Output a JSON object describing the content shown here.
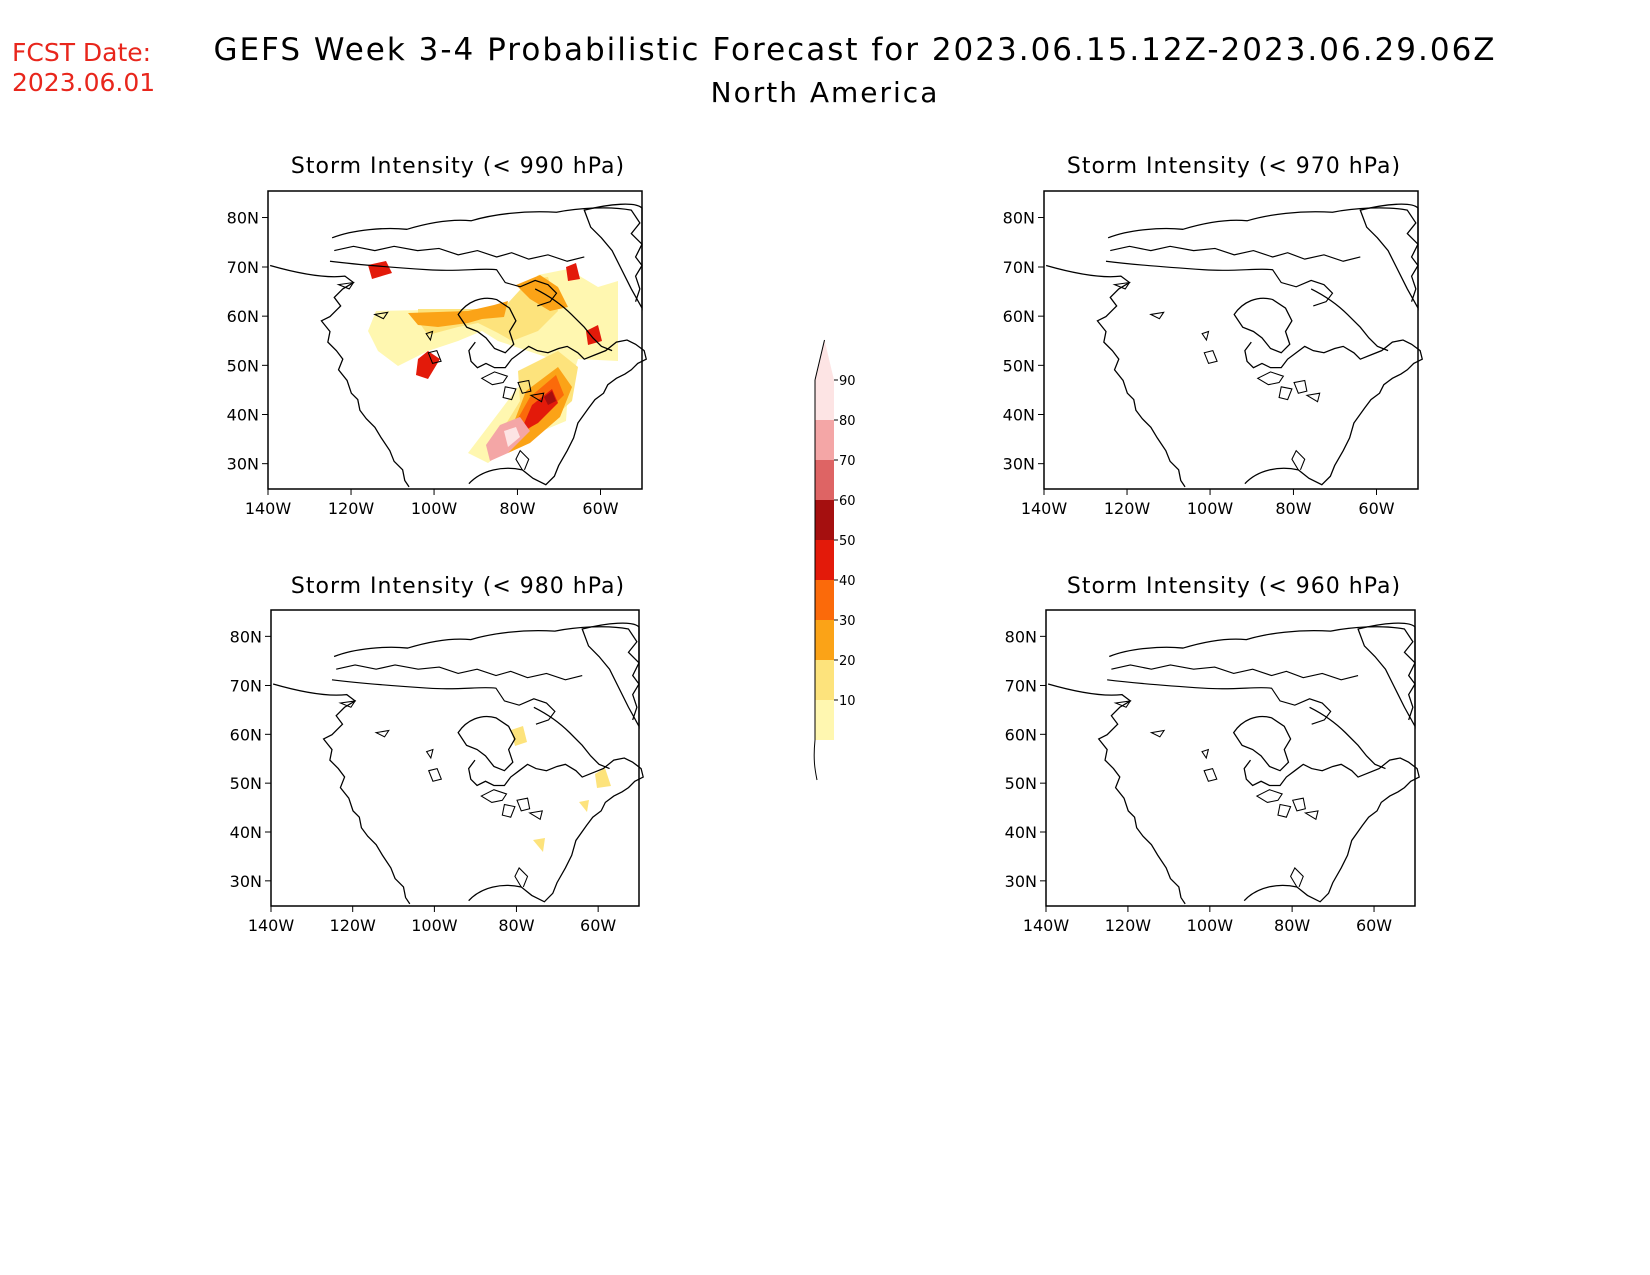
{
  "header": {
    "fcst_label": "FCST Date:",
    "fcst_date": "2023.06.01",
    "title": "GEFS Week 3-4 Probabilistic Forecast for 2023.06.15.12Z-2023.06.29.06Z",
    "subtitle": "North America"
  },
  "panels": [
    {
      "title": "Storm Intensity (< 990 hPa)",
      "threshold_hPa": 990,
      "has_signal": true
    },
    {
      "title": "Storm Intensity (< 970 hPa)",
      "threshold_hPa": 970,
      "has_signal": false
    },
    {
      "title": "Storm Intensity (< 980 hPa)",
      "threshold_hPa": 980,
      "has_signal": true
    },
    {
      "title": "Storm Intensity (< 960 hPa)",
      "threshold_hPa": 960,
      "has_signal": false
    }
  ],
  "axes": {
    "lat_labels": [
      "80N",
      "70N",
      "60N",
      "50N",
      "40N",
      "30N"
    ],
    "lon_labels": [
      "140W",
      "120W",
      "100W",
      "80W",
      "60W"
    ]
  },
  "colorbar": {
    "levels": [
      "10",
      "20",
      "30",
      "40",
      "50",
      "60",
      "70",
      "80",
      "90"
    ],
    "colors": [
      "#fff7b0",
      "#fde37c",
      "#fba317",
      "#fb6a0a",
      "#e31a0a",
      "#a50f0f",
      "#de6464",
      "#f4a6a6",
      "#fde4e4"
    ]
  }
}
